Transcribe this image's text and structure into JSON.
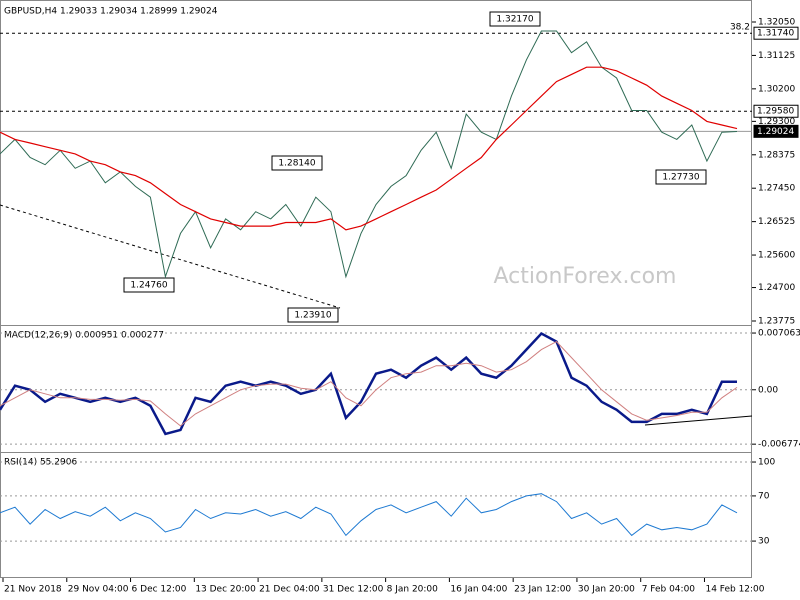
{
  "chart_data": [
    {
      "type": "line",
      "title": "GBPUSD,H4  1.29033 1.29034 1.28999 1.29024",
      "watermark": "ActionForex.com",
      "x": [
        0,
        1,
        2,
        3,
        4,
        5,
        6,
        7,
        8,
        9,
        10,
        11,
        12,
        13,
        14,
        15,
        16,
        17,
        18,
        19,
        20,
        21,
        22,
        23,
        24,
        25,
        26,
        27,
        28,
        29,
        30,
        31,
        32,
        33,
        34,
        35,
        36,
        37,
        38,
        39,
        40,
        41,
        42,
        43,
        44,
        45,
        46,
        47,
        48,
        49
      ],
      "xlim": [
        0,
        50
      ],
      "ylim": [
        1.23664,
        1.32659
      ],
      "yticks": [
        {
          "value": 1.3205,
          "label": "1.32050"
        },
        1.31125,
        {
          "value": 1.302,
          "label": "1.30200"
        },
        {
          "value": 1.293,
          "label": "1.29300"
        },
        1.28375,
        {
          "value": 1.2745,
          "label": "1.27450"
        },
        1.26525,
        {
          "value": 1.256,
          "label": "1.25600"
        },
        {
          "value": 1.247,
          "label": "1.24700"
        },
        1.23775
      ],
      "series": [
        {
          "name": "GBPUSD",
          "color": "#2f6b55",
          "values": [
            1.284,
            1.288,
            1.283,
            1.281,
            1.285,
            1.28,
            1.282,
            1.276,
            1.279,
            1.275,
            1.272,
            1.25,
            1.262,
            1.268,
            1.258,
            1.266,
            1.263,
            1.268,
            1.266,
            1.27,
            1.264,
            1.272,
            1.268,
            1.25,
            1.262,
            1.27,
            1.275,
            1.278,
            1.285,
            1.29,
            1.28,
            1.295,
            1.29,
            1.288,
            1.3,
            1.31,
            1.318,
            1.318,
            1.312,
            1.315,
            1.308,
            1.305,
            1.296,
            1.296,
            1.29,
            1.288,
            1.292,
            1.282,
            1.29,
            1.2902
          ]
        },
        {
          "name": "MA",
          "color": "#e00000",
          "values": [
            1.29,
            1.288,
            1.287,
            1.286,
            1.285,
            1.284,
            1.282,
            1.281,
            1.279,
            1.278,
            1.276,
            1.273,
            1.27,
            1.268,
            1.266,
            1.265,
            1.264,
            1.264,
            1.264,
            1.265,
            1.265,
            1.265,
            1.266,
            1.263,
            1.264,
            1.266,
            1.268,
            1.27,
            1.272,
            1.274,
            1.277,
            1.28,
            1.283,
            1.288,
            1.292,
            1.296,
            1.3,
            1.304,
            1.306,
            1.308,
            1.308,
            1.307,
            1.305,
            1.303,
            1.3,
            1.298,
            1.296,
            1.293,
            1.292,
            1.291
          ]
        }
      ],
      "levels": [
        {
          "value": 1.3174,
          "label": "1.31740"
        },
        {
          "value": 1.2958,
          "label": "1.29580"
        },
        {
          "value": 1.29024,
          "label": "1.29024"
        }
      ],
      "fib_label": "38.2",
      "annotations": [
        "1.32170",
        "1.28140",
        "1.24760",
        "1.23910",
        "1.27730"
      ]
    },
    {
      "type": "line",
      "title": "MACD(12,26,9) 0.000951 0.000277",
      "xlim": [
        0,
        50
      ],
      "ylim": [
        -0.00775,
        0.00794
      ],
      "yticks": [
        0.007063,
        {
          "value": 0,
          "label": "0.00"
        },
        -0.006774
      ],
      "series": [
        {
          "name": "MACD",
          "color": "#0a1a8a",
          "values": [
            -0.0025,
            0.0005,
            0,
            -0.0015,
            -0.0005,
            -0.001,
            -0.0015,
            -0.001,
            -0.0015,
            -0.001,
            -0.002,
            -0.0055,
            -0.005,
            -0.001,
            -0.0015,
            0.0005,
            0.001,
            0.0005,
            0.001,
            0.0005,
            -0.0005,
            0,
            0.002,
            -0.0035,
            -0.0015,
            0.002,
            0.0025,
            0.0015,
            0.003,
            0.004,
            0.0025,
            0.004,
            0.002,
            0.0015,
            0.003,
            0.005,
            0.007,
            0.006,
            0.0015,
            0.0005,
            -0.0015,
            -0.0025,
            -0.004,
            -0.004,
            -0.003,
            -0.003,
            -0.0025,
            -0.003,
            0.001,
            0.001
          ]
        },
        {
          "name": "Signal",
          "color": "#d08080",
          "values": [
            -0.002,
            -0.001,
            0,
            -0.0005,
            -0.001,
            -0.001,
            -0.0012,
            -0.0012,
            -0.0013,
            -0.0012,
            -0.0014,
            -0.003,
            -0.0045,
            -0.003,
            -0.002,
            -0.001,
            0,
            0.0005,
            0.0007,
            0.0007,
            0.0002,
            0,
            0.001,
            -0.001,
            -0.002,
            0,
            0.0015,
            0.002,
            0.0022,
            0.003,
            0.003,
            0.0033,
            0.003,
            0.0022,
            0.0025,
            0.0035,
            0.005,
            0.006,
            0.004,
            0.002,
            0,
            -0.0015,
            -0.003,
            -0.0038,
            -0.0035,
            -0.0032,
            -0.0028,
            -0.0028,
            -0.001,
            0.0003
          ]
        }
      ]
    },
    {
      "type": "line",
      "title": "RSI(14) 55.2906",
      "xlim": [
        0,
        50
      ],
      "ylim": [
        -2.7,
        108
      ],
      "yticks": [
        100,
        70,
        30
      ],
      "xticks": [
        {
          "value": 0.2,
          "label": "21 Nov 2018"
        },
        {
          "value": 4.44,
          "label": "29 Nov 04:00"
        },
        {
          "value": 8.68,
          "label": "6 Dec 12:00"
        },
        {
          "value": 12.92,
          "label": "13 Dec 20:00"
        },
        {
          "value": 17.16,
          "label": "21 Dec 04:00"
        },
        {
          "value": 21.4,
          "label": "31 Dec 12:00"
        },
        {
          "value": 25.64,
          "label": "8 Jan 20:00"
        },
        {
          "value": 29.88,
          "label": "16 Jan 04:00"
        },
        {
          "value": 34.12,
          "label": "23 Jan 12:00"
        },
        {
          "value": 38.36,
          "label": "30 Jan 20:00"
        },
        {
          "value": 42.6,
          "label": "7 Feb 04:00"
        },
        {
          "value": 46.84,
          "label": "14 Feb 12:00"
        }
      ],
      "series": [
        {
          "name": "RSI",
          "color": "#1e7ad2",
          "values": [
            55,
            60,
            45,
            58,
            50,
            56,
            52,
            60,
            48,
            55,
            50,
            38,
            42,
            58,
            50,
            55,
            54,
            58,
            52,
            56,
            50,
            60,
            54,
            35,
            48,
            58,
            62,
            55,
            60,
            65,
            52,
            68,
            55,
            58,
            65,
            70,
            72,
            65,
            50,
            55,
            45,
            50,
            35,
            45,
            40,
            42,
            40,
            45,
            62,
            55
          ]
        }
      ]
    }
  ]
}
